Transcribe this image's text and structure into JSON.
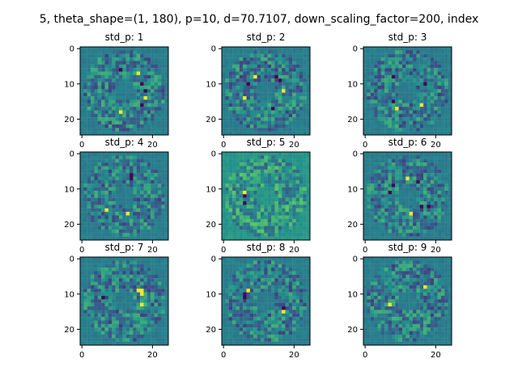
{
  "suptitle": "5, theta_shape=(1, 180), p=10, d=70.7107, down_scaling_factor=200, index",
  "colormap": [
    "#440154",
    "#3b528b",
    "#21918c",
    "#5ec962",
    "#fde725"
  ],
  "chart_data": [
    {
      "type": "heatmap",
      "title": "std_p: 1",
      "xlim": [
        0,
        24
      ],
      "ylim": [
        0,
        24
      ],
      "xticks": [
        "0",
        "20"
      ],
      "yticks": [
        "0",
        "10",
        "20"
      ]
    },
    {
      "type": "heatmap",
      "title": "std_p: 2",
      "xlim": [
        0,
        24
      ],
      "ylim": [
        0,
        24
      ],
      "xticks": [
        "0",
        "20"
      ],
      "yticks": [
        "0",
        "10",
        "20"
      ]
    },
    {
      "type": "heatmap",
      "title": "std_p: 3",
      "xlim": [
        0,
        24
      ],
      "ylim": [
        0,
        24
      ],
      "xticks": [
        "0",
        "20"
      ],
      "yticks": [
        "0",
        "10",
        "20"
      ]
    },
    {
      "type": "heatmap",
      "title": "std_p: 4",
      "xlim": [
        0,
        24
      ],
      "ylim": [
        0,
        24
      ],
      "xticks": [
        "0",
        "20"
      ],
      "yticks": [
        "0",
        "10",
        "20"
      ]
    },
    {
      "type": "heatmap",
      "title": "std_p: 5",
      "xlim": [
        0,
        24
      ],
      "ylim": [
        0,
        24
      ],
      "xticks": [
        "0",
        "20"
      ],
      "yticks": [
        "0",
        "10",
        "20"
      ]
    },
    {
      "type": "heatmap",
      "title": "std_p: 6",
      "xlim": [
        0,
        24
      ],
      "ylim": [
        0,
        24
      ],
      "xticks": [
        "0",
        "20"
      ],
      "yticks": [
        "0",
        "10",
        "20"
      ]
    },
    {
      "type": "heatmap",
      "title": "std_p: 7",
      "xlim": [
        0,
        24
      ],
      "ylim": [
        0,
        24
      ],
      "xticks": [
        "0",
        "20"
      ],
      "yticks": [
        "0",
        "10",
        "20"
      ]
    },
    {
      "type": "heatmap",
      "title": "std_p: 8",
      "xlim": [
        0,
        24
      ],
      "ylim": [
        0,
        24
      ],
      "xticks": [
        "0",
        "20"
      ],
      "yticks": [
        "0",
        "10",
        "20"
      ]
    },
    {
      "type": "heatmap",
      "title": "std_p: 9",
      "xlim": [
        0,
        24
      ],
      "ylim": [
        0,
        24
      ],
      "xticks": [
        "0",
        "20"
      ],
      "yticks": [
        "0",
        "10",
        "20"
      ]
    }
  ]
}
